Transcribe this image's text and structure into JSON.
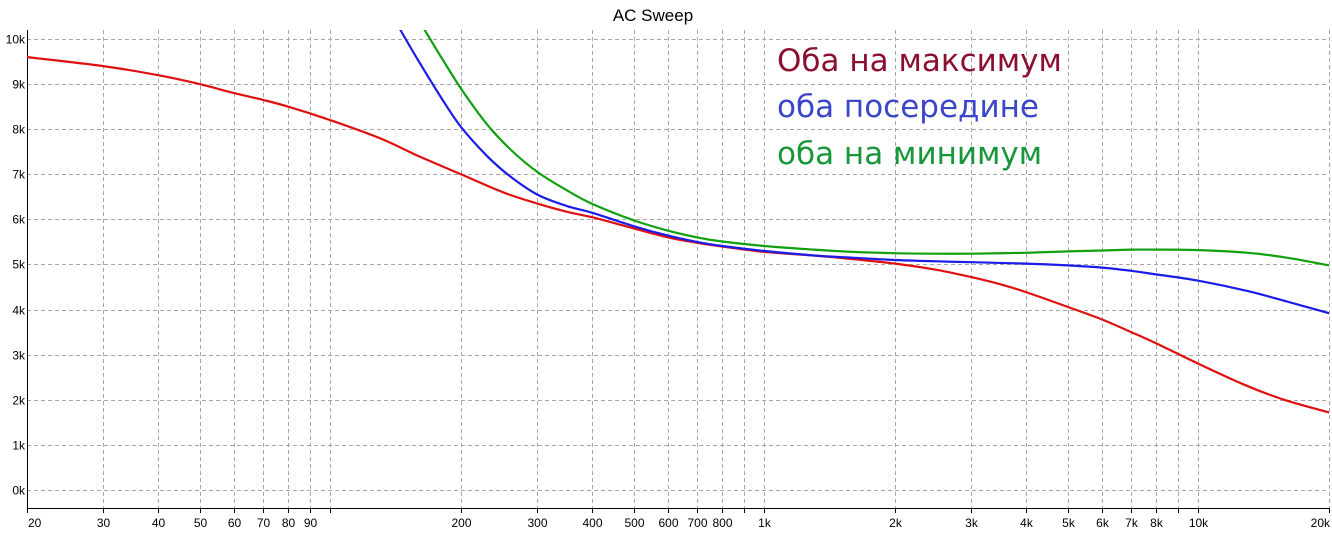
{
  "chart_data": {
    "type": "line",
    "title": "AC Sweep",
    "xscale": "log",
    "xlim": [
      20,
      20000
    ],
    "ylim": [
      -400,
      10200
    ],
    "x_ticks": [
      {
        "value": 20,
        "label": "20"
      },
      {
        "value": 30,
        "label": "30"
      },
      {
        "value": 40,
        "label": "40"
      },
      {
        "value": 50,
        "label": "50"
      },
      {
        "value": 60,
        "label": "60"
      },
      {
        "value": 70,
        "label": "70"
      },
      {
        "value": 80,
        "label": "80"
      },
      {
        "value": 90,
        "label": "90"
      },
      {
        "value": 100,
        "label": ""
      },
      {
        "value": 200,
        "label": "200"
      },
      {
        "value": 300,
        "label": "300"
      },
      {
        "value": 400,
        "label": "400"
      },
      {
        "value": 500,
        "label": "500"
      },
      {
        "value": 600,
        "label": "600"
      },
      {
        "value": 700,
        "label": "700"
      },
      {
        "value": 800,
        "label": "800"
      },
      {
        "value": 900,
        "label": ""
      },
      {
        "value": 1000,
        "label": "1k"
      },
      {
        "value": 2000,
        "label": "2k"
      },
      {
        "value": 3000,
        "label": "3k"
      },
      {
        "value": 4000,
        "label": "4k"
      },
      {
        "value": 5000,
        "label": "5k"
      },
      {
        "value": 6000,
        "label": "6k"
      },
      {
        "value": 7000,
        "label": "7k"
      },
      {
        "value": 8000,
        "label": "8k"
      },
      {
        "value": 9000,
        "label": ""
      },
      {
        "value": 10000,
        "label": "10k"
      },
      {
        "value": 20000,
        "label": "20k"
      }
    ],
    "y_ticks": [
      {
        "value": 0,
        "label": "0k"
      },
      {
        "value": 1000,
        "label": "1k"
      },
      {
        "value": 2000,
        "label": "2k"
      },
      {
        "value": 3000,
        "label": "3k"
      },
      {
        "value": 4000,
        "label": "4k"
      },
      {
        "value": 5000,
        "label": "5k"
      },
      {
        "value": 6000,
        "label": "6k"
      },
      {
        "value": 7000,
        "label": "7k"
      },
      {
        "value": 8000,
        "label": "8k"
      },
      {
        "value": 9000,
        "label": "9k"
      },
      {
        "value": 10000,
        "label": "10k"
      }
    ],
    "grid": true,
    "legend_position": "top-right",
    "series": [
      {
        "name": "Оба на максимум",
        "color": "#e01010",
        "label_color": "#8b1030",
        "x": [
          20,
          30,
          40,
          50,
          60,
          70,
          80,
          100,
          130,
          160,
          200,
          250,
          300,
          350,
          400,
          500,
          600,
          700,
          800,
          1000,
          1300,
          1600,
          2000,
          2500,
          3000,
          3500,
          4000,
          5000,
          6000,
          7000,
          8000,
          10000,
          13000,
          16000,
          20000
        ],
        "y": [
          9600,
          9400,
          9200,
          9000,
          8800,
          8650,
          8500,
          8200,
          7800,
          7400,
          7000,
          6600,
          6350,
          6170,
          6050,
          5800,
          5600,
          5480,
          5400,
          5280,
          5200,
          5120,
          5020,
          4880,
          4720,
          4560,
          4390,
          4060,
          3780,
          3500,
          3250,
          2800,
          2300,
          1980,
          1720
        ]
      },
      {
        "name": "оба посередине",
        "color": "#1c1ce8",
        "label_color": "#3c46c8",
        "x": [
          145,
          160,
          180,
          200,
          230,
          260,
          300,
          350,
          400,
          500,
          600,
          700,
          800,
          1000,
          1300,
          1600,
          2000,
          2500,
          3000,
          4000,
          5000,
          6000,
          7000,
          8000,
          10000,
          13000,
          16000,
          20000
        ],
        "y": [
          10200,
          9500,
          8700,
          8050,
          7400,
          6950,
          6550,
          6300,
          6150,
          5850,
          5640,
          5500,
          5410,
          5300,
          5200,
          5150,
          5100,
          5070,
          5050,
          5020,
          4980,
          4930,
          4860,
          4780,
          4640,
          4410,
          4180,
          3920
        ]
      },
      {
        "name": "оба на минимум",
        "color": "#10a010",
        "label_color": "#18963a",
        "x": [
          165,
          180,
          200,
          230,
          260,
          300,
          350,
          400,
          500,
          600,
          700,
          800,
          1000,
          1300,
          1600,
          2000,
          2500,
          3000,
          4000,
          5000,
          6000,
          7000,
          8000,
          10000,
          13000,
          16000,
          20000
        ],
        "y": [
          10200,
          9600,
          8900,
          8100,
          7550,
          7050,
          6650,
          6350,
          5980,
          5750,
          5600,
          5510,
          5410,
          5330,
          5280,
          5250,
          5240,
          5240,
          5260,
          5290,
          5310,
          5330,
          5330,
          5320,
          5260,
          5150,
          4980
        ]
      }
    ]
  }
}
